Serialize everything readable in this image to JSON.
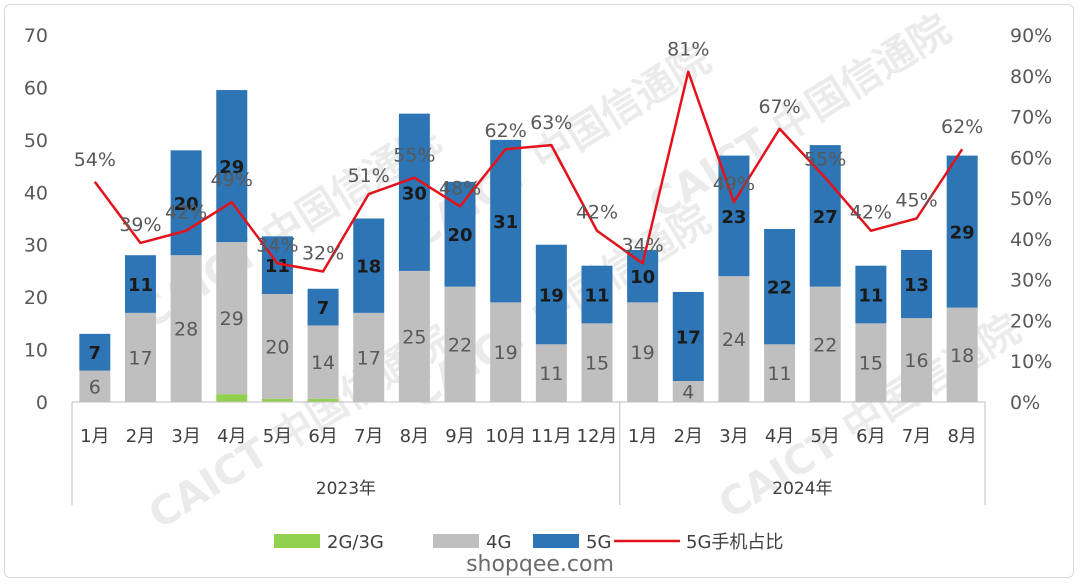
{
  "chart_data": {
    "type": "bar",
    "stacked": true,
    "years": [
      {
        "label": "2023年",
        "months": [
          "1月",
          "2月",
          "3月",
          "4月",
          "5月",
          "6月",
          "7月",
          "8月",
          "9月",
          "10月",
          "11月",
          "12月"
        ]
      },
      {
        "label": "2024年",
        "months": [
          "1月",
          "2月",
          "3月",
          "4月",
          "5月",
          "6月",
          "7月",
          "8月"
        ]
      }
    ],
    "series": [
      {
        "name": "2G/3G",
        "color": "#92d050",
        "values": [
          0,
          0,
          0,
          1.5,
          0.6,
          0.6,
          0,
          0,
          0,
          0,
          0,
          0,
          0,
          0,
          0,
          0,
          0,
          0,
          0,
          0
        ],
        "labels_shown": false
      },
      {
        "name": "4G",
        "color": "#bfbfbf",
        "values": [
          6,
          17,
          28,
          29,
          20,
          14,
          17,
          25,
          22,
          19,
          11,
          15,
          19,
          4,
          24,
          11,
          22,
          15,
          16,
          18
        ],
        "labels": [
          "6",
          "17",
          "28",
          "29",
          "20",
          "14",
          "17",
          "25",
          "22",
          "19",
          "11",
          "15",
          "19",
          "4",
          "24",
          "11",
          "22",
          "15",
          "16",
          "18"
        ]
      },
      {
        "name": "5G",
        "color": "#2e75b6",
        "values": [
          7,
          11,
          20,
          29,
          11,
          7,
          18,
          30,
          20,
          31,
          19,
          11,
          10,
          17,
          23,
          22,
          27,
          11,
          13,
          29
        ],
        "labels": [
          "7",
          "11",
          "20",
          "29",
          "11",
          "7",
          "18",
          "30",
          "20",
          "31",
          "19",
          "11",
          "10",
          "17",
          "23",
          "22",
          "27",
          "11",
          "13",
          "29"
        ]
      }
    ],
    "line": {
      "name": "5G手机占比",
      "color": "#e3121b",
      "values": [
        54,
        39,
        42,
        49,
        34,
        32,
        51,
        55,
        48,
        62,
        63,
        42,
        34,
        81,
        49,
        67,
        55,
        42,
        45,
        62
      ],
      "labels": [
        "54%",
        "39%",
        "42%",
        "49%",
        "34%",
        "32%",
        "51%",
        "55%",
        "48%",
        "62%",
        "63%",
        "42%",
        "34%",
        "81%",
        "49%",
        "67%",
        "55%",
        "42%",
        "45%",
        "62%"
      ]
    },
    "y_left": {
      "min": 0,
      "max": 70,
      "ticks": [
        "0",
        "10",
        "20",
        "30",
        "40",
        "50",
        "60",
        "70"
      ]
    },
    "y_right": {
      "min": 0,
      "max": 90,
      "ticks": [
        "0%",
        "10%",
        "20%",
        "30%",
        "40%",
        "50%",
        "60%",
        "70%",
        "80%",
        "90%"
      ]
    },
    "legend": {
      "position": "bottom",
      "items": [
        "2G/3G",
        "4G",
        "5G",
        "5G手机占比"
      ]
    },
    "grid": false
  },
  "watermark_text": "CAICT 中国信通院",
  "site_caption": "shopqee.com"
}
